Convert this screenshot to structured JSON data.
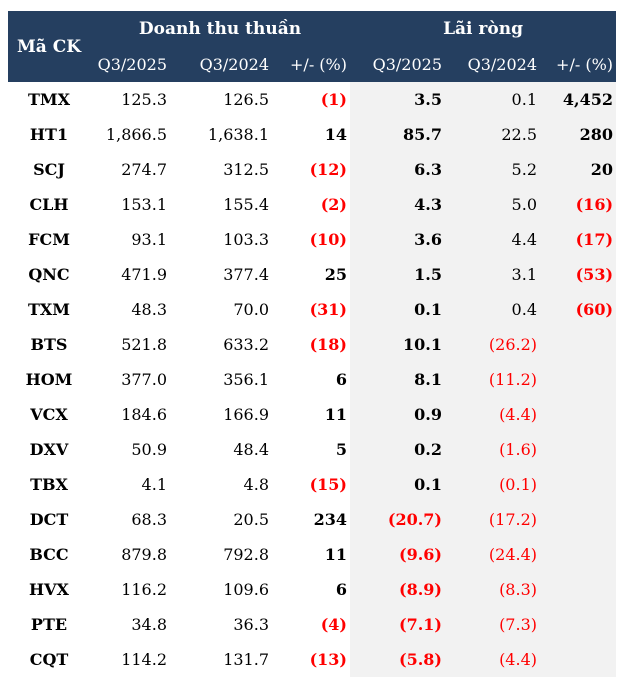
{
  "header": {
    "ticker": "Mã CK",
    "revenue_group": "Doanh thu thuần",
    "profit_group": "Lãi ròng",
    "cols": [
      "Q3/2025",
      "Q3/2024",
      "+/- (%)",
      "Q3/2025",
      "Q3/2024",
      "+/- (%)"
    ]
  },
  "colors": {
    "header_bg": "#253f60",
    "negative": "#ff0000",
    "shade": "#f2f2f2"
  },
  "rows": [
    [
      "TMX",
      "125.3",
      "126.5",
      "(1)",
      "3.5",
      "0.1",
      "4,452"
    ],
    [
      "HT1",
      "1,866.5",
      "1,638.1",
      "14",
      "85.7",
      "22.5",
      "280"
    ],
    [
      "SCJ",
      "274.7",
      "312.5",
      "(12)",
      "6.3",
      "5.2",
      "20"
    ],
    [
      "CLH",
      "153.1",
      "155.4",
      "(2)",
      "4.3",
      "5.0",
      "(16)"
    ],
    [
      "FCM",
      "93.1",
      "103.3",
      "(10)",
      "3.6",
      "4.4",
      "(17)"
    ],
    [
      "QNC",
      "471.9",
      "377.4",
      "25",
      "1.5",
      "3.1",
      "(53)"
    ],
    [
      "TXM",
      "48.3",
      "70.0",
      "(31)",
      "0.1",
      "0.4",
      "(60)"
    ],
    [
      "BTS",
      "521.8",
      "633.2",
      "(18)",
      "10.1",
      "(26.2)",
      ""
    ],
    [
      "HOM",
      "377.0",
      "356.1",
      "6",
      "8.1",
      "(11.2)",
      ""
    ],
    [
      "VCX",
      "184.6",
      "166.9",
      "11",
      "0.9",
      "(4.4)",
      ""
    ],
    [
      "DXV",
      "50.9",
      "48.4",
      "5",
      "0.2",
      "(1.6)",
      ""
    ],
    [
      "TBX",
      "4.1",
      "4.8",
      "(15)",
      "0.1",
      "(0.1)",
      ""
    ],
    [
      "DCT",
      "68.3",
      "20.5",
      "234",
      "(20.7)",
      "(17.2)",
      ""
    ],
    [
      "BCC",
      "879.8",
      "792.8",
      "11",
      "(9.6)",
      "(24.4)",
      ""
    ],
    [
      "HVX",
      "116.2",
      "109.6",
      "6",
      "(8.9)",
      "(8.3)",
      ""
    ],
    [
      "PTE",
      "34.8",
      "36.3",
      "(4)",
      "(7.1)",
      "(7.3)",
      ""
    ],
    [
      "CQT",
      "114.2",
      "131.7",
      "(13)",
      "(5.8)",
      "(4.4)",
      ""
    ]
  ]
}
